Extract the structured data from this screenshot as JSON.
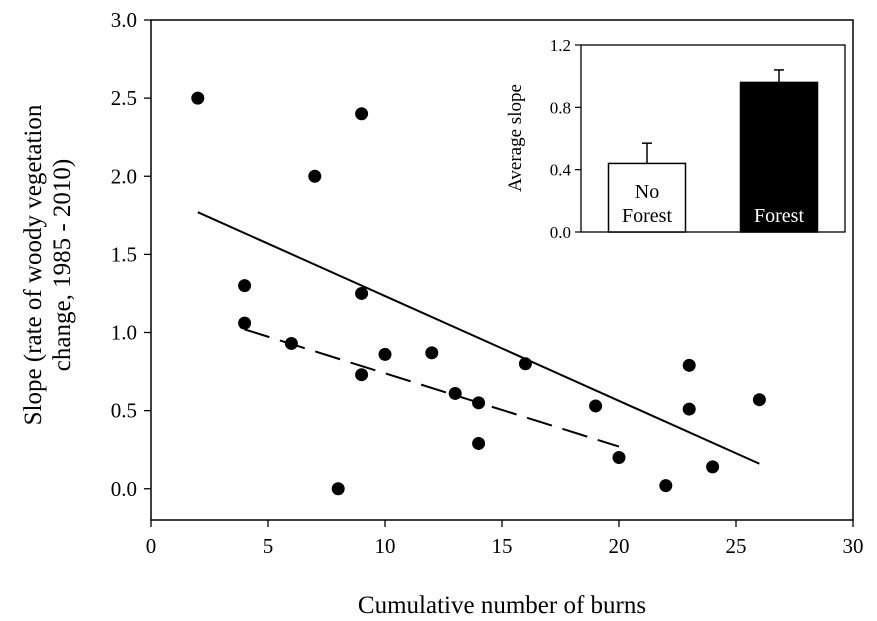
{
  "chart_data": [
    {
      "type": "scatter",
      "title": "",
      "xlabel": "Cumulative number of burns",
      "ylabel_lines": [
        "Slope (rate of woody vegetation",
        "change, 1985 - 2010)"
      ],
      "xlim": [
        0,
        30
      ],
      "ylim": [
        -0.2,
        3.0
      ],
      "xticks": [
        0,
        5,
        10,
        15,
        20,
        25,
        30
      ],
      "xtick_labels": [
        "0",
        "5",
        "10",
        "15",
        "20",
        "25",
        "30"
      ],
      "yticks": [
        0.0,
        0.5,
        1.0,
        1.5,
        2.0,
        2.5,
        3.0
      ],
      "ytick_labels": [
        "0.0",
        "0.5",
        "1.0",
        "1.5",
        "2.0",
        "2.5",
        "3.0"
      ],
      "grid": false,
      "points": [
        {
          "x": 2,
          "y": 2.5
        },
        {
          "x": 9,
          "y": 2.4
        },
        {
          "x": 7,
          "y": 2.0
        },
        {
          "x": 4,
          "y": 1.3
        },
        {
          "x": 9,
          "y": 1.25
        },
        {
          "x": 4,
          "y": 1.06
        },
        {
          "x": 6,
          "y": 0.93
        },
        {
          "x": 10,
          "y": 0.86
        },
        {
          "x": 12,
          "y": 0.87
        },
        {
          "x": 9,
          "y": 0.73
        },
        {
          "x": 16,
          "y": 0.8
        },
        {
          "x": 13,
          "y": 0.61
        },
        {
          "x": 14,
          "y": 0.55
        },
        {
          "x": 14,
          "y": 0.29
        },
        {
          "x": 19,
          "y": 0.53
        },
        {
          "x": 20,
          "y": 0.2
        },
        {
          "x": 8,
          "y": 0.0
        },
        {
          "x": 22,
          "y": 0.02
        },
        {
          "x": 23,
          "y": 0.79
        },
        {
          "x": 23,
          "y": 0.51
        },
        {
          "x": 24,
          "y": 0.14
        },
        {
          "x": 26,
          "y": 0.57
        }
      ],
      "trend_lines": [
        {
          "style": "solid",
          "x": [
            2,
            26
          ],
          "y": [
            1.77,
            0.16
          ]
        },
        {
          "style": "dashed",
          "x": [
            4,
            20
          ],
          "y": [
            1.02,
            0.27
          ]
        }
      ]
    },
    {
      "type": "bar",
      "title": "",
      "ylabel": "Average slope",
      "ylim": [
        0,
        1.2
      ],
      "yticks": [
        0.0,
        0.4,
        0.8,
        1.2
      ],
      "ytick_labels": [
        "0.0",
        "0.4",
        "0.8",
        "1.2"
      ],
      "categories": [
        {
          "label_lines": [
            "No",
            "Forest"
          ],
          "value": 0.44,
          "error": 0.13,
          "fill": "#ffffff",
          "text_color": "#000000"
        },
        {
          "label_lines": [
            "Forest"
          ],
          "value": 0.96,
          "error": 0.08,
          "fill": "#000000",
          "text_color": "#ffffff"
        }
      ]
    }
  ]
}
